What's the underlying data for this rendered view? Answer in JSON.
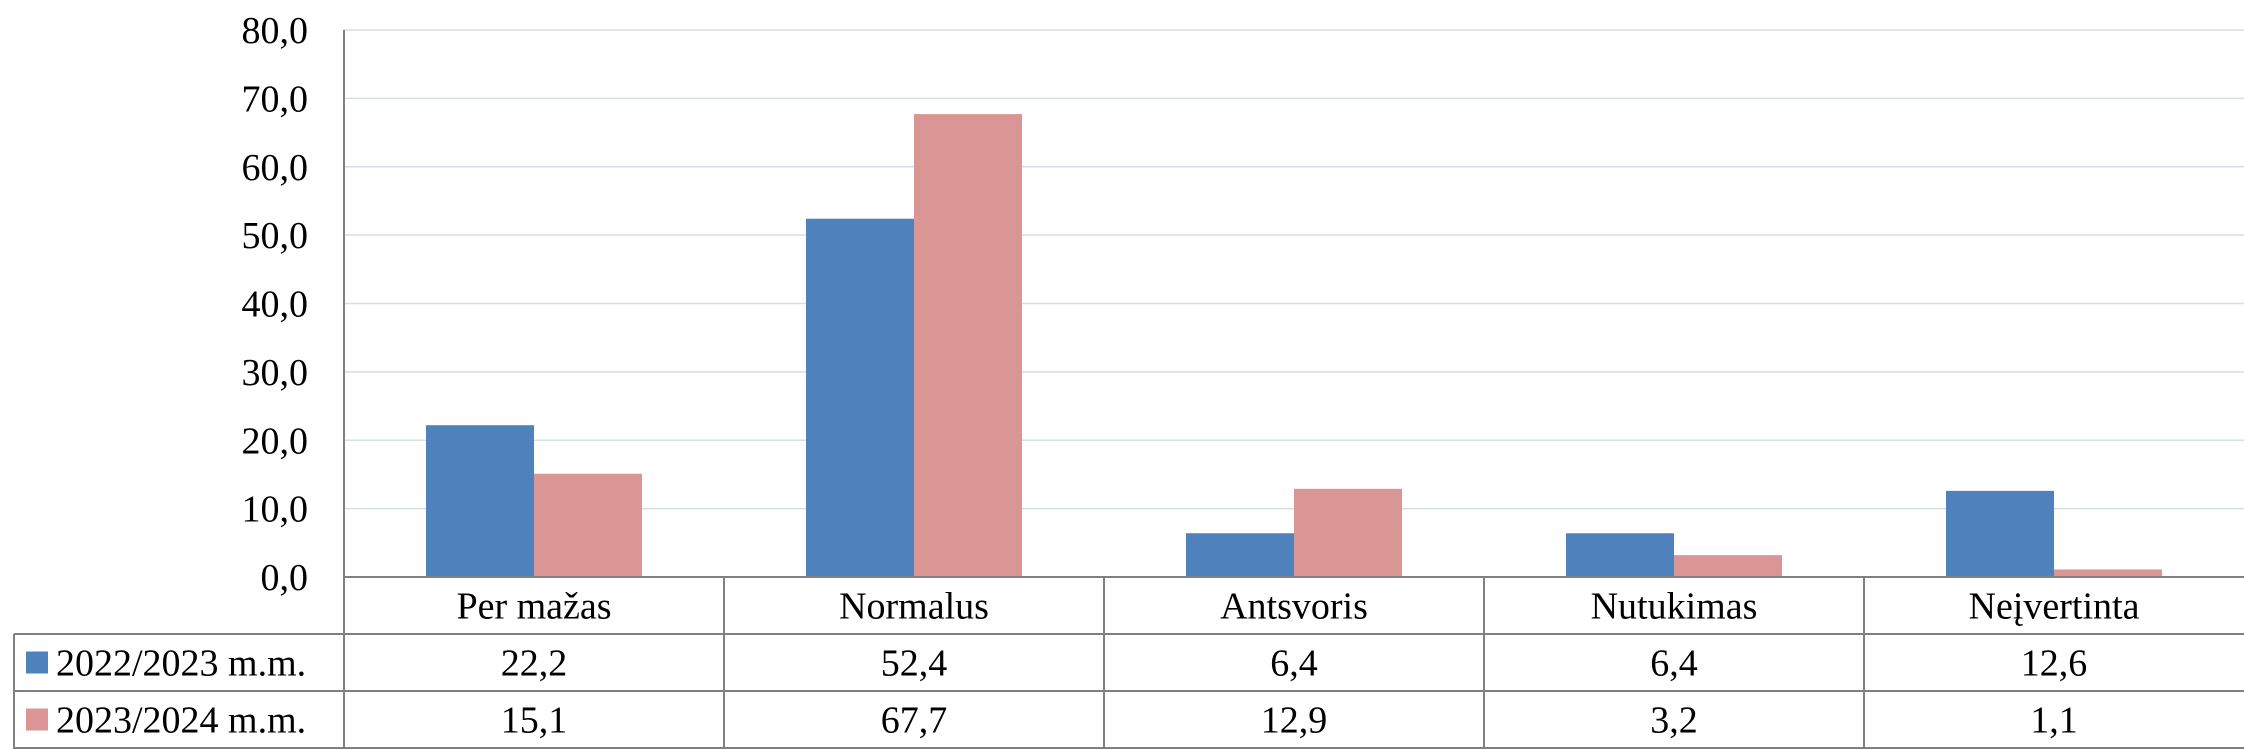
{
  "chart_data": {
    "type": "bar",
    "categories": [
      "Per mažas",
      "Normalus",
      "Antsvoris",
      "Nutukimas",
      "Neįvertinta"
    ],
    "series": [
      {
        "name": "2022/2023 m.m.",
        "color": "#4f81bd",
        "values": [
          22.2,
          52.4,
          6.4,
          6.4,
          12.6
        ],
        "labels": [
          "22,2",
          "52,4",
          "6,4",
          "6,4",
          "12,6"
        ]
      },
      {
        "name": "2023/2024 m.m.",
        "color": "#d99694",
        "values": [
          15.1,
          67.7,
          12.9,
          3.2,
          1.1
        ],
        "labels": [
          "15,1",
          "67,7",
          "12,9",
          "3,2",
          "1,1"
        ]
      }
    ],
    "ylim": [
      0,
      80
    ],
    "yticks": [
      0,
      10,
      20,
      30,
      40,
      50,
      60,
      70,
      80
    ],
    "ytick_labels": [
      "0,0",
      "10,0",
      "20,0",
      "30,0",
      "40,0",
      "50,0",
      "60,0",
      "70,0",
      "80,0"
    ],
    "grid": true,
    "legend": "data-table-below"
  }
}
